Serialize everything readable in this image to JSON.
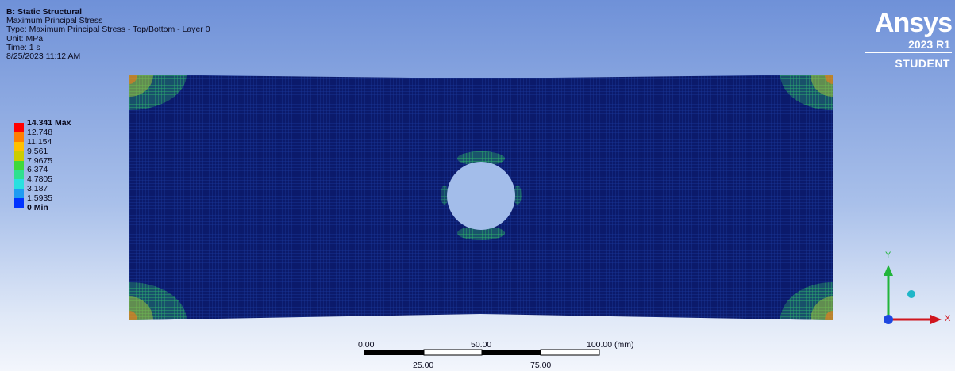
{
  "info": {
    "title": "B: Static Structural",
    "result": "Maximum Principal Stress",
    "type": "Type: Maximum Principal Stress - Top/Bottom - Layer 0",
    "unit": "Unit: MPa",
    "time": "Time: 1 s",
    "timestamp": "8/25/2023 11:12 AM"
  },
  "legend": {
    "max_label": "14.341 Max",
    "levels": [
      "12.748",
      "11.154",
      "9.561",
      "7.9675",
      "6.374",
      "4.7805",
      "3.187",
      "1.5935"
    ],
    "min_label": "0 Min",
    "colors": [
      "#ff0000",
      "#ff7f00",
      "#ffc000",
      "#cccc00",
      "#3fd93a",
      "#2fe08f",
      "#29e0e0",
      "#1e9cf2",
      "#0033ff"
    ]
  },
  "brand": {
    "name": "Ansys",
    "version": "2023 R1",
    "edition": "STUDENT"
  },
  "scale_bar": {
    "top_labels": [
      "0.00",
      "50.00",
      "100.00 (mm)"
    ],
    "bottom_labels": [
      "25.00",
      "75.00"
    ]
  },
  "triad": {
    "y_label": "Y",
    "x_label": "X",
    "colors": {
      "y": "#22b53b",
      "x": "#d0161e",
      "z": "#1e47e0",
      "ball": "#1fb6c8"
    }
  },
  "model": {
    "plate_color": "#0b1a6b",
    "mesh_color": "#1b3a9e"
  }
}
